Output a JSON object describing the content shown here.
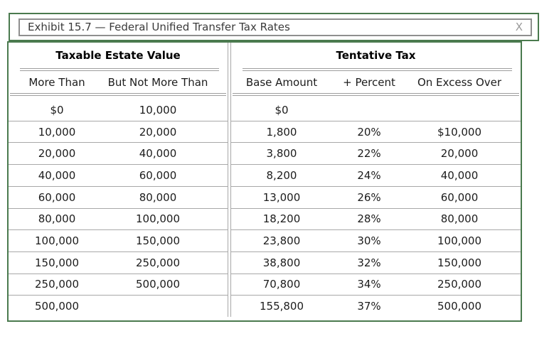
{
  "window": {
    "title": "Exhibit 15.7 — Federal Unified Transfer Tax Rates",
    "close_label": "X"
  },
  "colors": {
    "frame_green": "#4a7a4e",
    "rule_gray": "#a8a8a8",
    "title_border_gray": "#8f8f8f"
  },
  "table": {
    "groups": [
      {
        "label": "Taxable Estate Value",
        "columns": [
          "More Than",
          "But Not More Than"
        ]
      },
      {
        "label": "Tentative Tax",
        "columns": [
          "Base Amount",
          "+ Percent",
          "On Excess Over"
        ]
      }
    ],
    "rows": [
      {
        "cells": [
          "$0",
          "10,000",
          "$0",
          "",
          ""
        ]
      },
      {
        "cells": [
          "10,000",
          "20,000",
          "1,800",
          "20%",
          "$10,000"
        ]
      },
      {
        "cells": [
          "20,000",
          "40,000",
          "3,800",
          "22%",
          "20,000"
        ]
      },
      {
        "cells": [
          "40,000",
          "60,000",
          "8,200",
          "24%",
          "40,000"
        ]
      },
      {
        "cells": [
          "60,000",
          "80,000",
          "13,000",
          "26%",
          "60,000"
        ]
      },
      {
        "cells": [
          "80,000",
          "100,000",
          "18,200",
          "28%",
          "80,000"
        ]
      },
      {
        "cells": [
          "100,000",
          "150,000",
          "23,800",
          "30%",
          "100,000"
        ]
      },
      {
        "cells": [
          "150,000",
          "250,000",
          "38,800",
          "32%",
          "150,000"
        ]
      },
      {
        "cells": [
          "250,000",
          "500,000",
          "70,800",
          "34%",
          "250,000"
        ]
      },
      {
        "cells": [
          "500,000",
          "",
          "155,800",
          "37%",
          "500,000"
        ]
      }
    ]
  }
}
